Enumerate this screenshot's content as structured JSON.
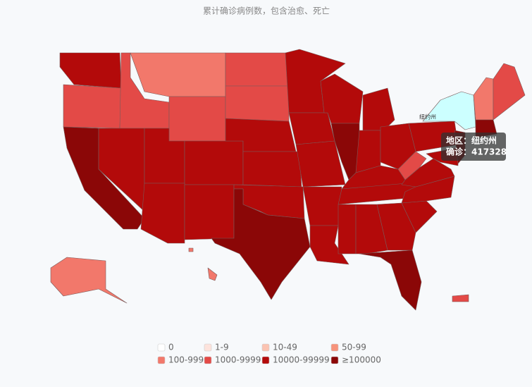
{
  "title": "累计确诊病例数，包含治愈、死亡",
  "map_label": "纽约州",
  "tooltip": {
    "region": "地区：纽约州",
    "value": "确诊：417328"
  },
  "legend": [
    {
      "label": "0",
      "color": "#ffffff"
    },
    {
      "label": "1-9",
      "color": "#fde3dc"
    },
    {
      "label": "10-49",
      "color": "#fbc3b1"
    },
    {
      "label": "50-99",
      "color": "#f7937b"
    },
    {
      "label": "100-999",
      "color": "#f2786b"
    },
    {
      "label": "1000-9999",
      "color": "#e34a47"
    },
    {
      "label": "10000-99999",
      "color": "#b30a0a"
    },
    {
      "label": "≥100000",
      "color": "#8b0707"
    }
  ]
}
